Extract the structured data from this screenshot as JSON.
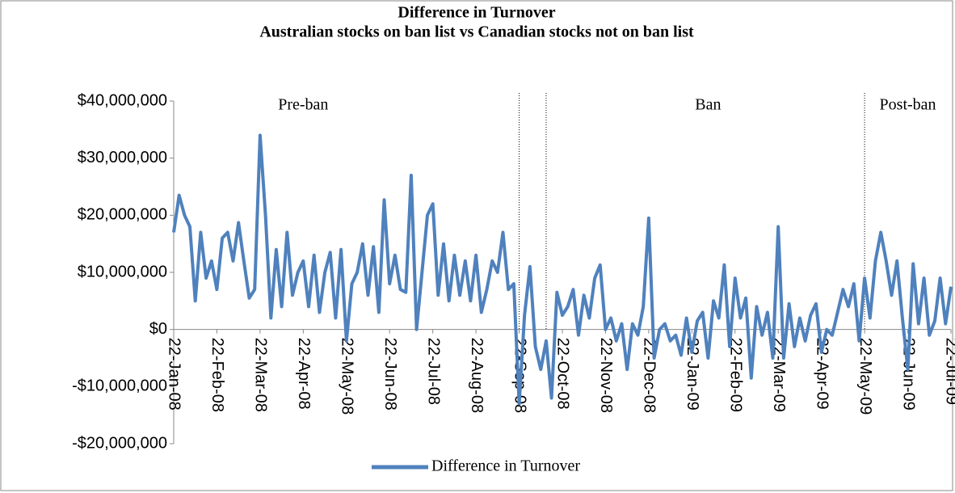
{
  "chart_data": {
    "type": "line",
    "title": "Difference in Turnover",
    "subtitle": "Australian stocks on ban list vs Canadian stocks not on ban list",
    "categories": [
      "22-Jan-08",
      null,
      null,
      null,
      null,
      null,
      null,
      null,
      "22-Feb-08",
      null,
      null,
      null,
      null,
      null,
      null,
      null,
      "22-Mar-08",
      null,
      null,
      null,
      null,
      null,
      null,
      null,
      "22-Apr-08",
      null,
      null,
      null,
      null,
      null,
      null,
      null,
      "22-May-08",
      null,
      null,
      null,
      null,
      null,
      null,
      null,
      "22-Jun-08",
      null,
      null,
      null,
      null,
      null,
      null,
      null,
      "22-Jul-08",
      null,
      null,
      null,
      null,
      null,
      null,
      null,
      "22-Aug-08",
      null,
      null,
      null,
      null,
      null,
      null,
      null,
      "22-Sep-08",
      null,
      null,
      null,
      null,
      null,
      null,
      null,
      "22-Oct-08",
      null,
      null,
      null,
      null,
      null,
      null,
      null,
      "22-Nov-08",
      null,
      null,
      null,
      null,
      null,
      null,
      null,
      "22-Dec-08",
      null,
      null,
      null,
      null,
      null,
      null,
      null,
      "22-Jan-09",
      null,
      null,
      null,
      null,
      null,
      null,
      null,
      "22-Feb-09",
      null,
      null,
      null,
      null,
      null,
      null,
      null,
      "22-Mar-09",
      null,
      null,
      null,
      null,
      null,
      null,
      null,
      "22-Apr-09",
      null,
      null,
      null,
      null,
      null,
      null,
      null,
      "22-May-09",
      null,
      null,
      null,
      null,
      null,
      null,
      null,
      "22-Jun-09",
      null,
      null,
      null,
      null,
      null,
      null,
      null,
      "22-Jul-09"
    ],
    "series": [
      {
        "name": "Difference in Turnover",
        "color": "#4f81bd",
        "values": [
          17000000,
          23500000,
          20000000,
          18000000,
          5000000,
          17000000,
          9000000,
          12000000,
          7000000,
          16000000,
          17000000,
          12000000,
          18700000,
          12000000,
          5500000,
          7000000,
          34000000,
          20000000,
          2000000,
          14000000,
          4000000,
          17000000,
          6000000,
          10000000,
          12000000,
          4000000,
          13000000,
          3000000,
          10000000,
          13500000,
          2000000,
          14000000,
          -2000000,
          8000000,
          10000000,
          15000000,
          6000000,
          14500000,
          3000000,
          22700000,
          8000000,
          13000000,
          7000000,
          6500000,
          27000000,
          0,
          10000000,
          20000000,
          22000000,
          6000000,
          15000000,
          5000000,
          13000000,
          6000000,
          12000000,
          5000000,
          13000000,
          3000000,
          7000000,
          12000000,
          10000000,
          17000000,
          7000000,
          8000000,
          -13000000,
          2500000,
          11000000,
          -3000000,
          -7000000,
          -2000000,
          -12000000,
          6500000,
          2500000,
          4000000,
          7000000,
          -1000000,
          6000000,
          2000000,
          9000000,
          11300000,
          0,
          2000000,
          -2000000,
          1000000,
          -7000000,
          1000000,
          -1000000,
          4000000,
          19500000,
          -5000000,
          0,
          1000000,
          -2000000,
          -1000000,
          -4500000,
          2000000,
          -4000000,
          1500000,
          3000000,
          -5000000,
          5000000,
          2000000,
          11300000,
          -3000000,
          9000000,
          2000000,
          5500000,
          -8500000,
          4000000,
          -1000000,
          3000000,
          -5000000,
          18000000,
          -5000000,
          4500000,
          -3000000,
          2000000,
          -2000000,
          2500000,
          4500000,
          -4000000,
          0,
          -1000000,
          3000000,
          7000000,
          4000000,
          8000000,
          -2000000,
          9000000,
          2000000,
          12000000,
          17000000,
          12000000,
          6000000,
          12000000,
          2000000,
          -7000000,
          11500000,
          1000000,
          9000000,
          -1000000,
          1500000,
          9000000,
          1000000,
          7500000
        ]
      }
    ],
    "ylim": [
      -20000000,
      40000000
    ],
    "yticks": [
      {
        "value": -20000000,
        "label": "-$20,000,000"
      },
      {
        "value": -10000000,
        "label": "-$10,000,000"
      },
      {
        "value": 0,
        "label": "$0"
      },
      {
        "value": 10000000,
        "label": "$10,000,000"
      },
      {
        "value": 20000000,
        "label": "$20,000,000"
      },
      {
        "value": 30000000,
        "label": "$30,000,000"
      },
      {
        "value": 40000000,
        "label": "$40,000,000"
      }
    ],
    "dividers": [
      64,
      69,
      128
    ],
    "annotations": [
      {
        "text": "Pre-ban",
        "x": 24
      },
      {
        "text": "Ban",
        "x": 99
      },
      {
        "text": "Post-ban",
        "x": 136
      }
    ],
    "legend": "bottom"
  }
}
